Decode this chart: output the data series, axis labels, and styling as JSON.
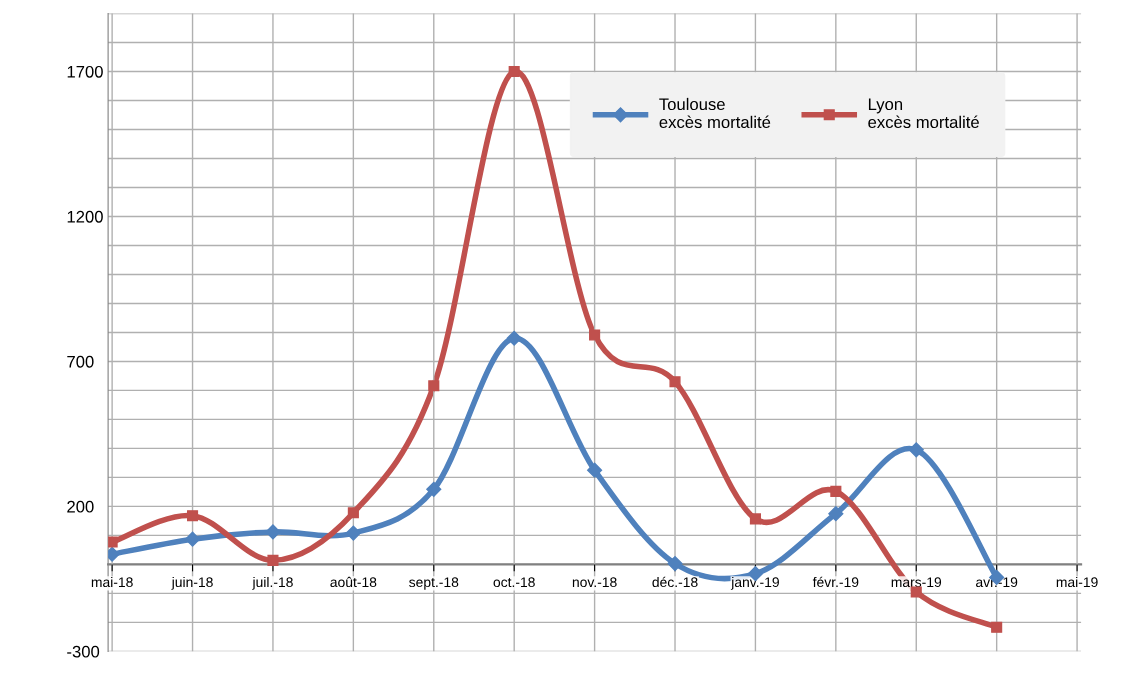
{
  "chart_data": {
    "type": "line",
    "categories": [
      "mai-18",
      "juin-18",
      "juil.-18",
      "août-18",
      "sept.-18",
      "oct.-18",
      "nov.-18",
      "déc.-18",
      "janv.-19",
      "févr.-19",
      "mars-19",
      "avr.-19",
      "mai-19"
    ],
    "series": [
      {
        "name": "Toulouse\nexcès mortalité",
        "color": "#4f81bd",
        "marker": "diamond",
        "values": [
          35,
          87,
          112,
          108,
          259,
          780,
          325,
          3,
          -32,
          175,
          395,
          -45,
          null
        ]
      },
      {
        "name": "Lyon\nexcès mortalité",
        "color": "#c0504d",
        "marker": "square",
        "values": [
          77,
          168,
          14,
          178,
          616,
          1700,
          791,
          630,
          157,
          252,
          -95,
          -217,
          null
        ]
      }
    ],
    "ylim": [
      -300,
      1900
    ],
    "yticks": [
      -300,
      {
        "value": -200,
        "label": null
      },
      {
        "value": -100,
        "label": null
      },
      {
        "value": 0,
        "label": null
      },
      {
        "value": 100,
        "label": null
      },
      200,
      {
        "value": 300,
        "label": null
      },
      {
        "value": 400,
        "label": null
      },
      {
        "value": 500,
        "label": null
      },
      {
        "value": 600,
        "label": null
      },
      700,
      {
        "value": 800,
        "label": null
      },
      {
        "value": 900,
        "label": null
      },
      {
        "value": 1000,
        "label": null
      },
      {
        "value": 1100,
        "label": null
      },
      1200,
      {
        "value": 1300,
        "label": null
      },
      {
        "value": 1400,
        "label": null
      },
      {
        "value": 1500,
        "label": null
      },
      {
        "value": 1600,
        "label": null
      },
      1700,
      {
        "value": 1800,
        "label": null
      },
      {
        "value": 1900,
        "label": null
      }
    ],
    "grid": true,
    "legend": "top right",
    "line_style": "solid"
  }
}
